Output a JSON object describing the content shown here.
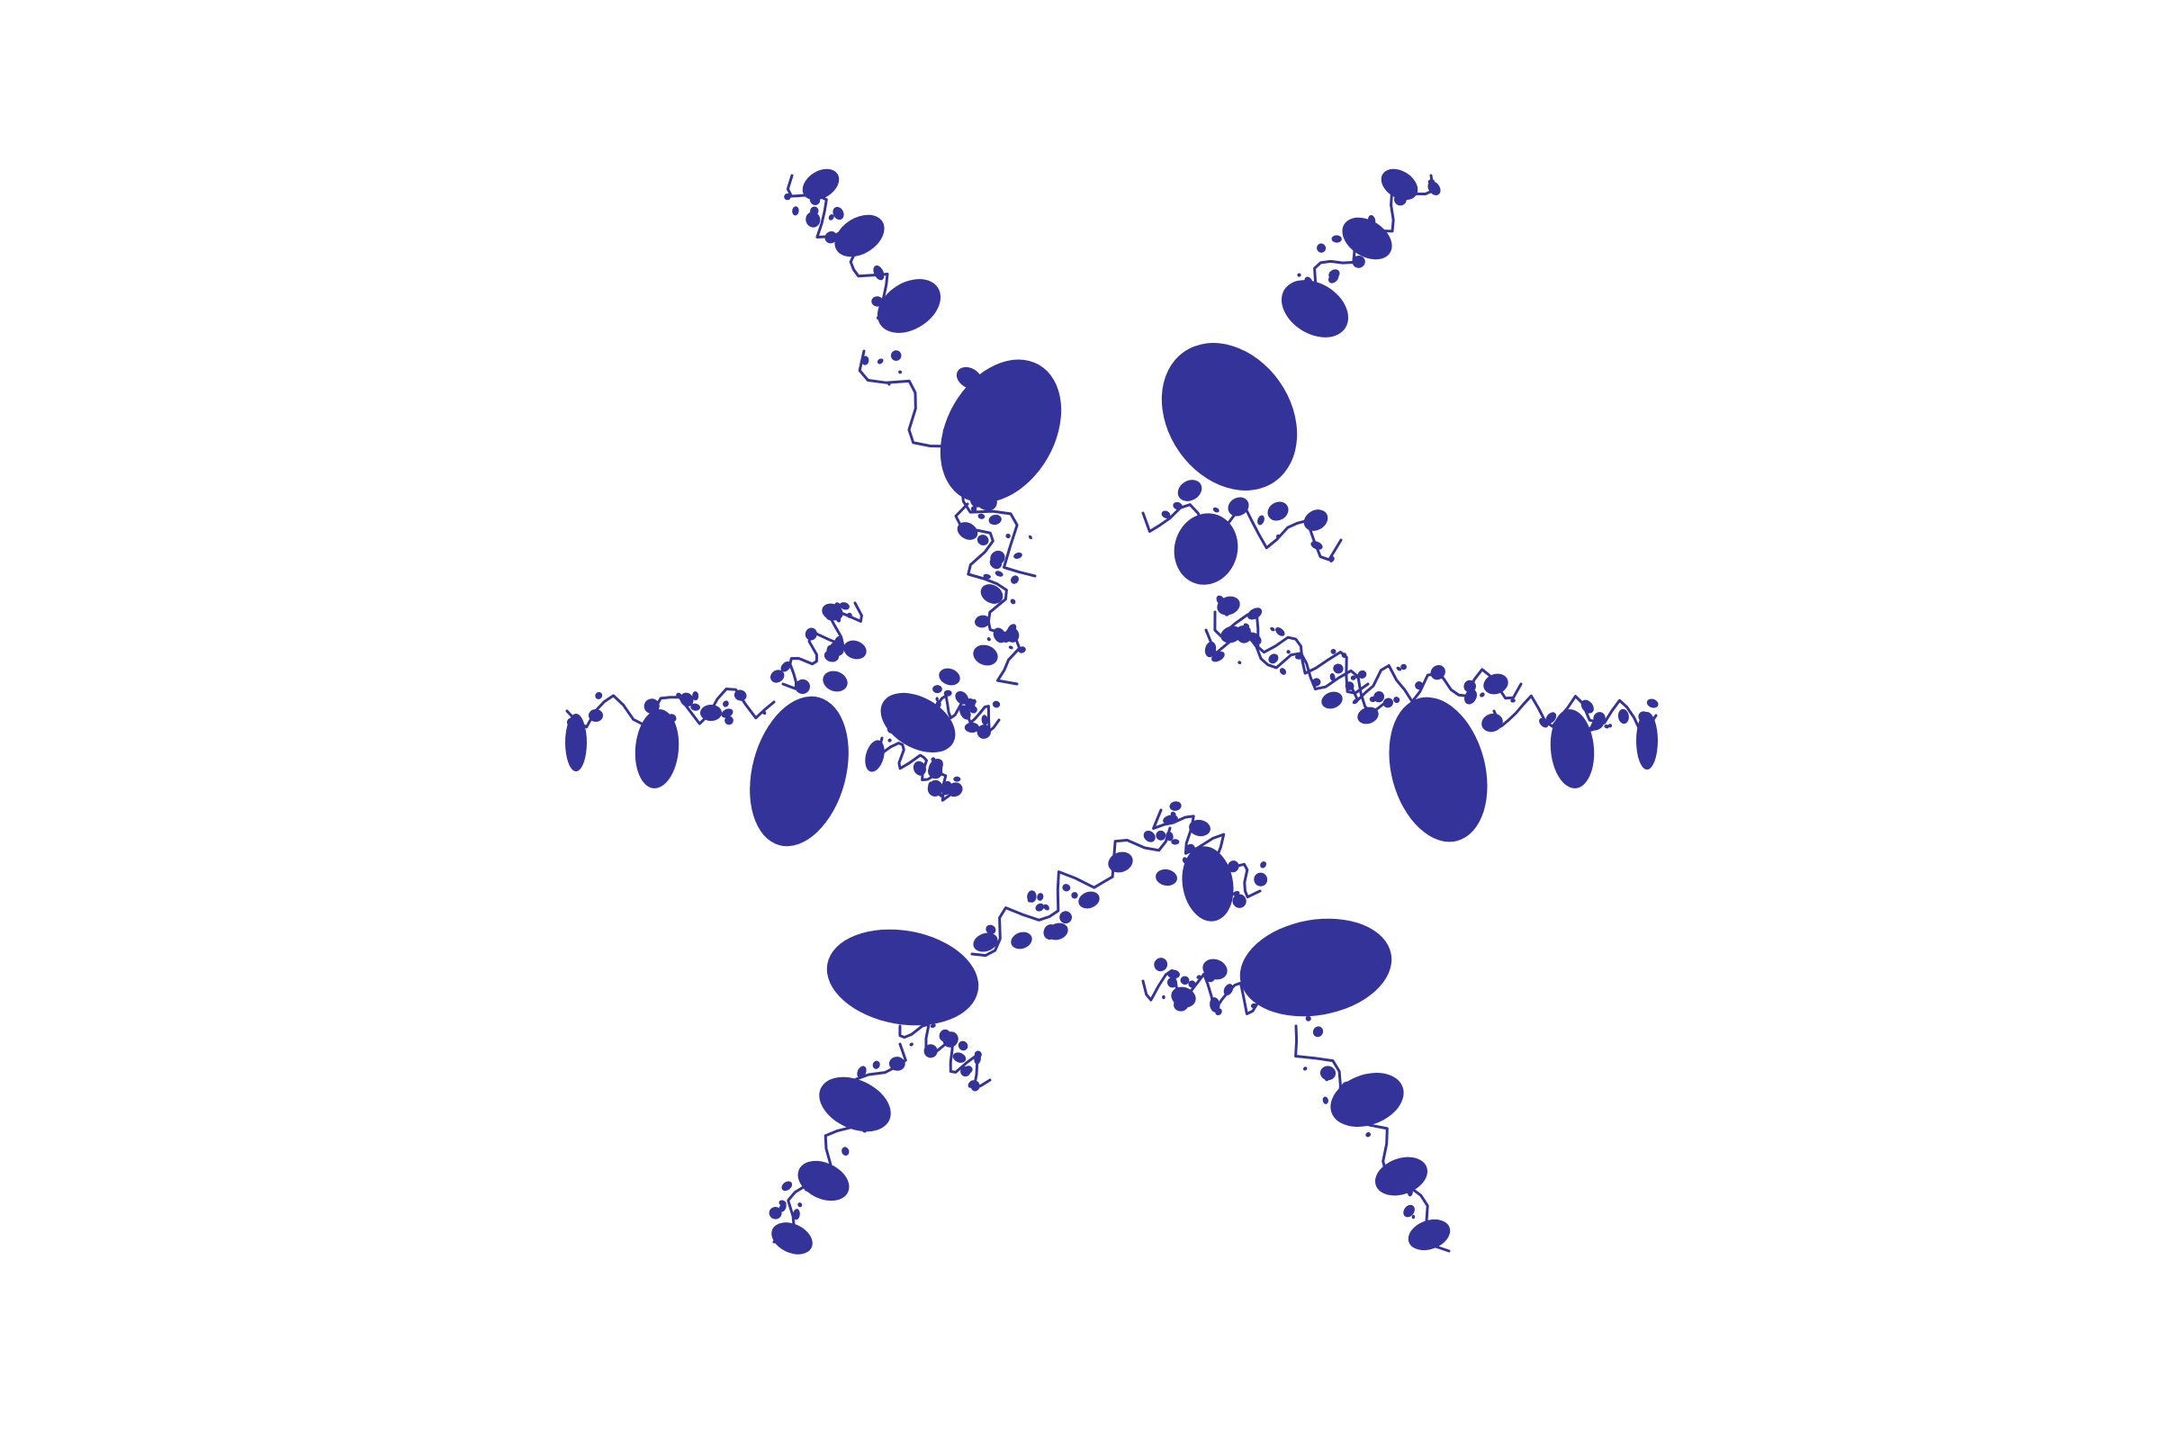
{
  "image": {
    "fill_color": "#333399",
    "background_color": "#ffffff"
  }
}
